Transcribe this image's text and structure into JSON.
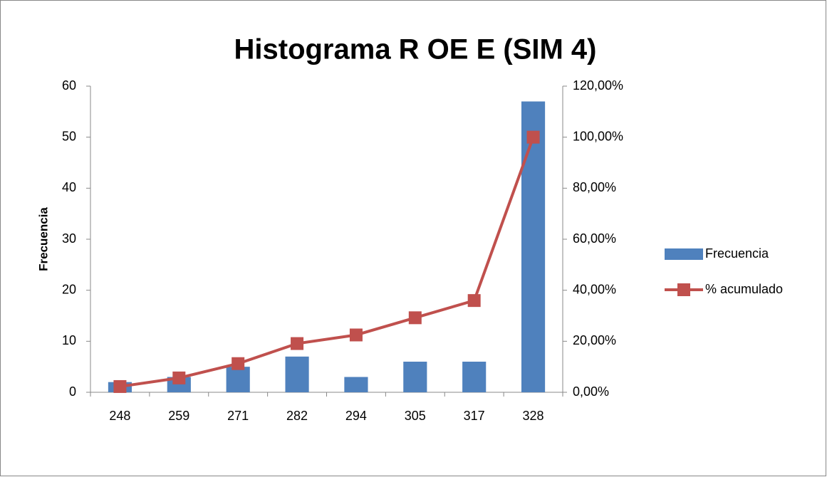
{
  "chart_data": {
    "type": "bar",
    "title": "Histograma R OE E (SIM 4)",
    "y_label": "Frecuencia",
    "categories": [
      "248",
      "259",
      "271",
      "282",
      "294",
      "305",
      "317",
      "328"
    ],
    "series": [
      {
        "name": "Frecuencia",
        "type": "bar",
        "color": "#4f81bd",
        "values": [
          2,
          3,
          5,
          7,
          3,
          6,
          6,
          57
        ]
      },
      {
        "name": "% acumulado",
        "type": "line",
        "axis": "y2",
        "color": "#c0504d",
        "values": [
          2.25,
          5.62,
          11.24,
          19.1,
          22.47,
          29.21,
          35.96,
          100
        ]
      }
    ],
    "ylim": [
      0,
      60
    ],
    "yticks": [
      0,
      10,
      20,
      30,
      40,
      50,
      60
    ],
    "y2lim": [
      0,
      120
    ],
    "y2ticks": [
      {
        "value": 0,
        "label": "0,00%"
      },
      {
        "value": 20,
        "label": "20,00%"
      },
      {
        "value": 40,
        "label": "40,00%"
      },
      {
        "value": 60,
        "label": "60,00%"
      },
      {
        "value": 80,
        "label": "80,00%"
      },
      {
        "value": 100,
        "label": "100,00%"
      },
      {
        "value": 120,
        "label": "120,00%"
      }
    ],
    "legend": "right"
  }
}
